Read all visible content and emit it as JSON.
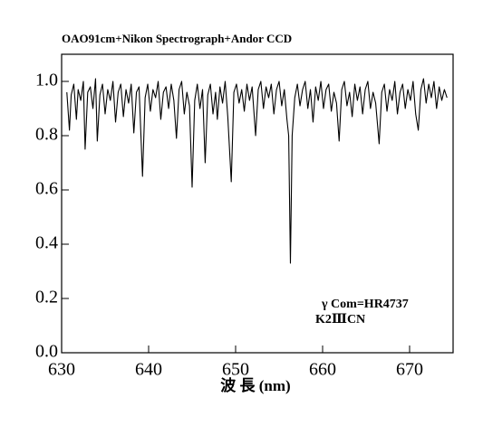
{
  "chart_data": {
    "type": "line",
    "title": "OAO91cm+Nikon Spectrograph+Andor CCD",
    "x_label": "波 長 (nm)",
    "annotations": [
      "γ Com=HR4737",
      "K2ⅢCN"
    ],
    "color": "#000000",
    "xlim": [
      630,
      675
    ],
    "xticks": [
      630,
      640,
      650,
      660,
      670
    ],
    "ylim": [
      0,
      1.1
    ],
    "yticks": [
      {
        "value": 0,
        "label": "0.0"
      },
      0.2,
      0.4,
      0.6,
      0.8,
      {
        "value": 1,
        "label": "1.0"
      }
    ],
    "x": [
      630.6,
      630.9,
      631.1,
      631.4,
      631.7,
      631.9,
      632.2,
      632.5,
      632.7,
      633.0,
      633.3,
      633.6,
      633.9,
      634.1,
      634.4,
      634.7,
      635.0,
      635.3,
      635.6,
      635.9,
      636.2,
      636.5,
      636.8,
      637.1,
      637.4,
      637.7,
      638.0,
      638.3,
      638.6,
      638.9,
      639.3,
      639.6,
      639.9,
      640.2,
      640.5,
      640.8,
      641.1,
      641.4,
      641.7,
      642.0,
      642.3,
      642.6,
      642.9,
      643.2,
      643.5,
      643.8,
      644.1,
      644.4,
      644.7,
      645.0,
      645.3,
      645.6,
      645.9,
      646.2,
      646.5,
      646.8,
      647.1,
      647.4,
      647.7,
      647.9,
      648.2,
      648.5,
      648.8,
      649.1,
      649.5,
      649.8,
      650.1,
      650.4,
      650.7,
      651.0,
      651.3,
      651.6,
      651.9,
      652.3,
      652.6,
      652.9,
      653.2,
      653.5,
      653.8,
      654.1,
      654.4,
      654.7,
      655.0,
      655.3,
      655.6,
      655.9,
      656.1,
      656.3,
      656.5,
      656.8,
      657.1,
      657.4,
      657.7,
      658.0,
      658.3,
      658.6,
      658.9,
      659.2,
      659.5,
      659.8,
      660.1,
      660.4,
      660.7,
      661.0,
      661.3,
      661.6,
      661.9,
      662.2,
      662.5,
      662.8,
      663.1,
      663.4,
      663.7,
      664.0,
      664.3,
      664.6,
      664.9,
      665.2,
      665.5,
      665.8,
      666.1,
      666.5,
      666.8,
      667.1,
      667.4,
      667.7,
      668.0,
      668.3,
      668.6,
      668.9,
      669.2,
      669.5,
      669.8,
      670.1,
      670.4,
      670.7,
      671.0,
      671.3,
      671.6,
      671.9,
      672.2,
      672.5,
      672.8,
      673.1,
      673.4,
      673.7,
      674.0,
      674.3
    ],
    "values": [
      0.96,
      0.82,
      0.95,
      0.99,
      0.86,
      0.97,
      0.93,
      1.0,
      0.75,
      0.96,
      0.98,
      0.9,
      1.01,
      0.78,
      0.95,
      0.99,
      0.88,
      0.97,
      0.93,
      1.0,
      0.85,
      0.96,
      0.99,
      0.87,
      0.97,
      0.92,
      0.99,
      0.81,
      0.96,
      0.98,
      0.65,
      0.94,
      0.99,
      0.89,
      0.97,
      0.94,
      1.0,
      0.86,
      0.96,
      0.98,
      0.9,
      0.99,
      0.93,
      0.79,
      0.97,
      1.0,
      0.88,
      0.96,
      0.91,
      0.61,
      0.93,
      0.99,
      0.9,
      0.97,
      0.7,
      0.95,
      0.99,
      0.88,
      0.96,
      0.86,
      0.98,
      0.92,
      1.0,
      0.87,
      0.63,
      0.96,
      0.99,
      0.92,
      0.97,
      0.89,
      0.99,
      0.93,
      0.98,
      0.8,
      0.97,
      1.0,
      0.9,
      0.98,
      0.94,
      0.99,
      0.88,
      0.97,
      1.0,
      0.91,
      0.97,
      0.86,
      0.8,
      0.33,
      0.8,
      0.94,
      0.99,
      0.91,
      0.97,
      1.0,
      0.9,
      0.97,
      0.85,
      0.98,
      0.93,
      1.0,
      0.9,
      0.97,
      0.99,
      0.89,
      0.96,
      0.92,
      0.78,
      0.97,
      1.0,
      0.91,
      0.96,
      0.87,
      0.99,
      0.93,
      0.98,
      0.88,
      0.97,
      1.0,
      0.9,
      0.96,
      0.92,
      0.77,
      0.96,
      0.99,
      0.89,
      0.97,
      0.93,
      1.0,
      0.88,
      0.96,
      0.99,
      0.9,
      0.97,
      0.93,
      1.0,
      0.88,
      0.82,
      0.97,
      1.01,
      0.92,
      0.99,
      0.94,
      1.0,
      0.9,
      0.98,
      0.93,
      0.97,
      0.94
    ]
  }
}
